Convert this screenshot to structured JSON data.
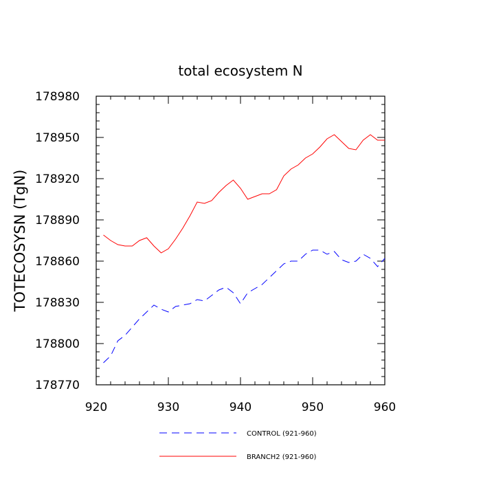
{
  "chart_data": {
    "type": "line",
    "title": "total ecosystem N",
    "xlabel": "",
    "ylabel": "TOTECOSYSN  (TgN)",
    "xlim": [
      920,
      960
    ],
    "ylim": [
      178770,
      178980
    ],
    "xticks": [
      920,
      930,
      940,
      950,
      960
    ],
    "yticks": [
      178770,
      178800,
      178830,
      178860,
      178890,
      178920,
      178950,
      178980
    ],
    "grid": false,
    "legend_position": "bottom",
    "series": [
      {
        "name": "CONTROL (921-960)",
        "color": "#0000ff",
        "dash": "dashed",
        "x": [
          921,
          922,
          923,
          924,
          925,
          926,
          927,
          928,
          929,
          930,
          931,
          932,
          933,
          934,
          935,
          936,
          937,
          938,
          939,
          940,
          941,
          942,
          943,
          944,
          945,
          946,
          947,
          948,
          949,
          950,
          951,
          952,
          953,
          954,
          955,
          956,
          957,
          958,
          959,
          960
        ],
        "y": [
          178786,
          178791,
          178802,
          178806,
          178812,
          178818,
          178823,
          178828,
          178825,
          178823,
          178827,
          178828,
          178829,
          178832,
          178831,
          178835,
          178839,
          178841,
          178837,
          178829,
          178837,
          178840,
          178843,
          178848,
          178853,
          178858,
          178860,
          178860,
          178865,
          178868,
          178868,
          178865,
          178867,
          178861,
          178859,
          178860,
          178865,
          178862,
          178856,
          178862
        ]
      },
      {
        "name": "BRANCH2 (921-960)",
        "color": "#ff0000",
        "dash": "solid",
        "x": [
          921,
          922,
          923,
          924,
          925,
          926,
          927,
          928,
          929,
          930,
          931,
          932,
          933,
          934,
          935,
          936,
          937,
          938,
          939,
          940,
          941,
          942,
          943,
          944,
          945,
          946,
          947,
          948,
          949,
          950,
          951,
          952,
          953,
          954,
          955,
          956,
          957,
          958,
          959,
          960
        ],
        "y": [
          178879,
          178875,
          178872,
          178871,
          178871,
          178875,
          178877,
          178871,
          178866,
          178869,
          178876,
          178884,
          178893,
          178903,
          178902,
          178904,
          178910,
          178915,
          178919,
          178913,
          178905,
          178907,
          178909,
          178909,
          178912,
          178922,
          178927,
          178930,
          178935,
          178938,
          178943,
          178949,
          178952,
          178947,
          178942,
          178941,
          178948,
          178952,
          178948,
          178948
        ]
      }
    ]
  }
}
